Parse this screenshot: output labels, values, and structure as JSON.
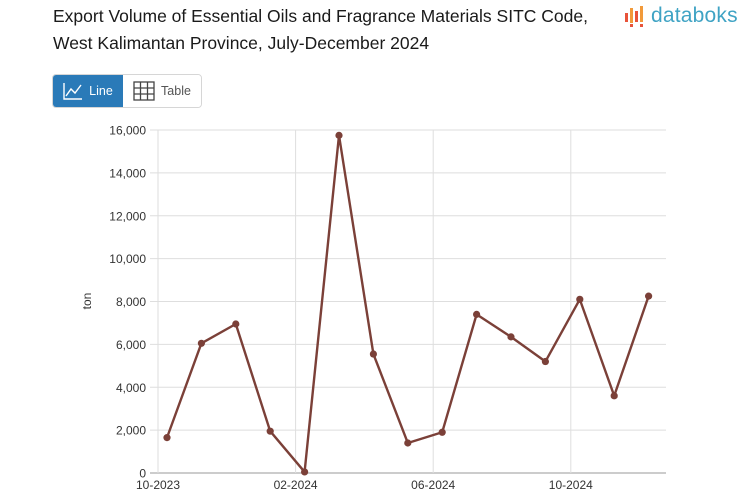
{
  "title": "Export Volume of Essential Oils and Fragrance Materials SITC Code, West Kalimantan Province, July-December 2024",
  "logo": {
    "text": "databoks",
    "colors": [
      "#e8533a",
      "#f29a3a",
      "#3fa3c4"
    ]
  },
  "view_toggle": {
    "line_label": "Line",
    "table_label": "Table",
    "active": "Line"
  },
  "chart_data": {
    "type": "line",
    "title": "Export Volume of Essential Oils and Fragrance Materials SITC Code, West Kalimantan Province, July-December 2024",
    "ylabel": "ton",
    "xlabel": "",
    "x": [
      "2023-10",
      "2023-11",
      "2023-12",
      "2024-01",
      "2024-02",
      "2024-03",
      "2024-04",
      "2024-05",
      "2024-06",
      "2024-07",
      "2024-08",
      "2024-09",
      "2024-10",
      "2024-11",
      "2024-12"
    ],
    "series": [
      {
        "color": "#7b4038",
        "values": [
          1650,
          6050,
          6950,
          1950,
          50,
          15750,
          5550,
          1400,
          1900,
          7400,
          6350,
          5200,
          8100,
          3600,
          8250
        ]
      }
    ],
    "ylim": [
      0,
      16000
    ],
    "yticks": [
      0,
      2000,
      4000,
      6000,
      8000,
      10000,
      12000,
      14000,
      16000
    ],
    "yticklabels": [
      "0",
      "2,000",
      "4,000",
      "6,000",
      "8,000",
      "10,000",
      "12,000",
      "14,000",
      "16,000"
    ],
    "xticks": [
      {
        "x": "2023-10",
        "label": "10-2023"
      },
      {
        "x": "2024-02",
        "label": "02-2024"
      },
      {
        "x": "2024-06",
        "label": "06-2024"
      },
      {
        "x": "2024-10",
        "label": "10-2024"
      }
    ],
    "grid": true
  }
}
